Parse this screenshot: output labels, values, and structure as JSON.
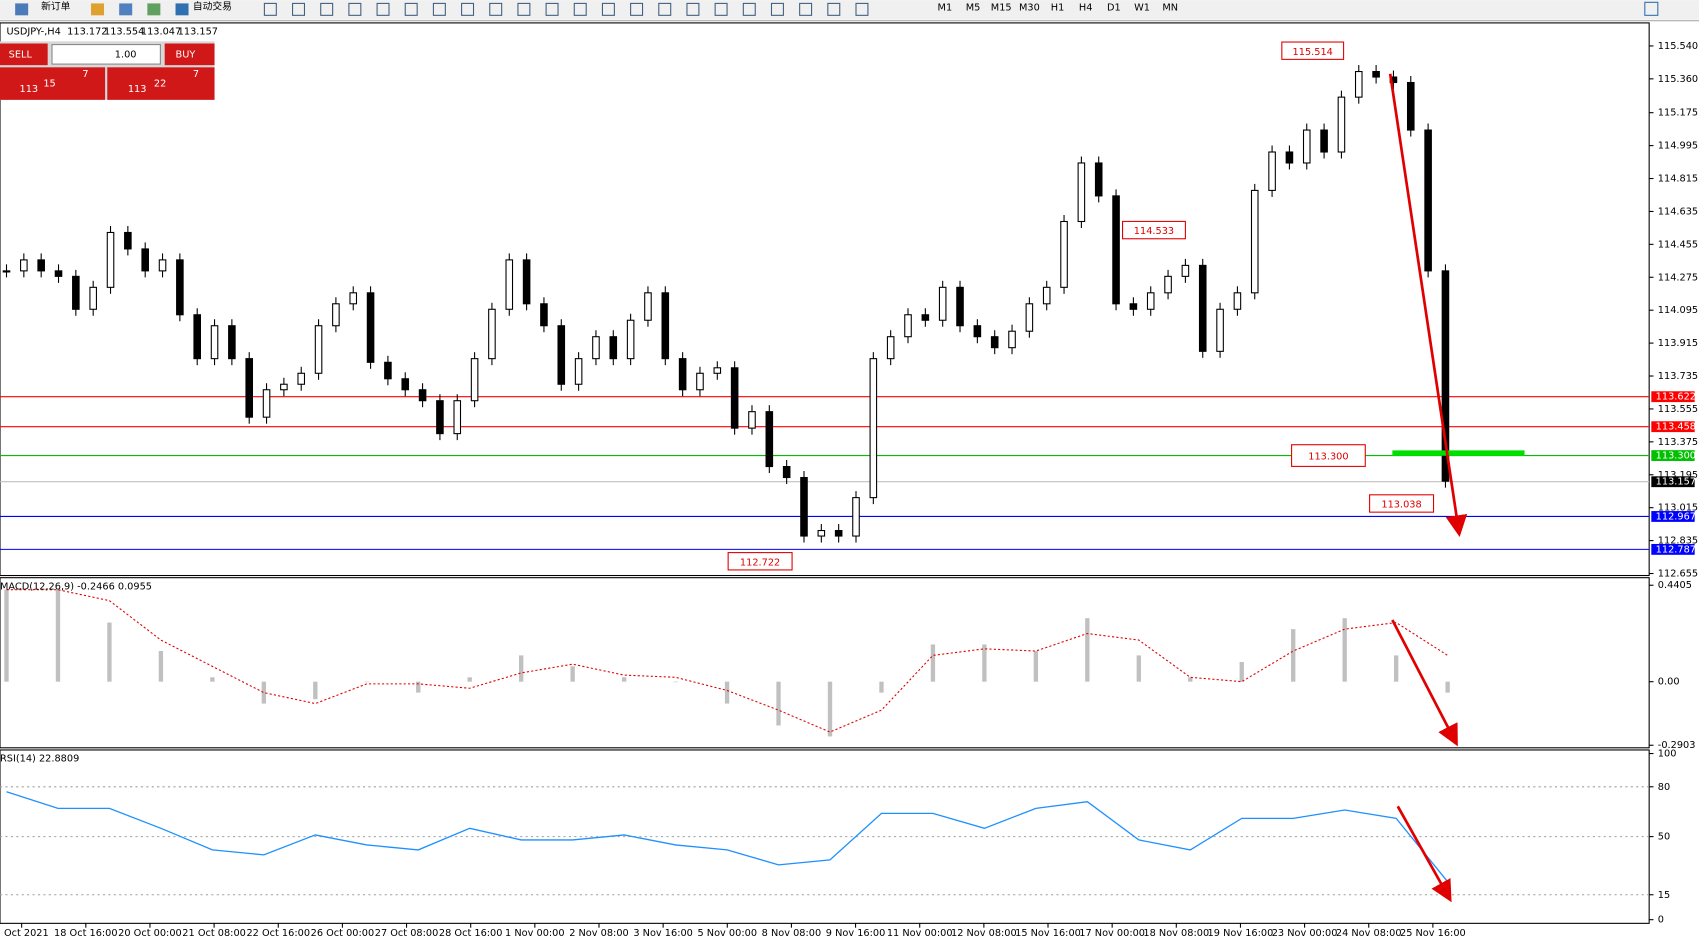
{
  "toolbar": {
    "new_order": "新订单",
    "auto_trading": "自动交易",
    "timeframes": [
      "M1",
      "M5",
      "M15",
      "M30",
      "H1",
      "H4",
      "D1",
      "W1",
      "MN"
    ]
  },
  "trade_panel": {
    "sell": "SELL",
    "lot": "1.00",
    "buy": "BUY",
    "sell_figure": "113",
    "sell_pips": "15",
    "sell_point": "7",
    "buy_figure": "113",
    "buy_pips": "22",
    "buy_point": "7"
  },
  "main": {
    "symbol": "USDJPY-,H4",
    "ohlc": [
      "113.172",
      "113.554",
      "113.047",
      "113.157"
    ],
    "ylim": [
      112.65,
      115.66
    ],
    "yticks": [
      {
        "value": 115.54,
        "label": "115.540"
      },
      {
        "value": 115.36,
        "label": "115.360"
      },
      {
        "value": 115.175,
        "label": "115.175"
      },
      {
        "value": 114.995,
        "label": "114.995"
      },
      {
        "value": 114.815,
        "label": "114.815"
      },
      {
        "value": 114.635,
        "label": "114.635"
      },
      {
        "value": 114.455,
        "label": "114.455"
      },
      {
        "value": 114.275,
        "label": "114.275"
      },
      {
        "value": 114.095,
        "label": "114.095"
      },
      {
        "value": 113.915,
        "label": "113.915"
      },
      {
        "value": 113.735,
        "label": "113.735"
      },
      {
        "value": 113.555,
        "label": "113.555"
      },
      {
        "value": 113.375,
        "label": "113.375"
      },
      {
        "value": 113.195,
        "label": "113.195"
      },
      {
        "value": 113.015,
        "label": "113.015"
      },
      {
        "value": 112.835,
        "label": "112.835"
      },
      {
        "value": 112.655,
        "label": "112.655"
      }
    ],
    "levels": [
      {
        "value": 113.622,
        "label": "113.622",
        "color": "#ff0000"
      },
      {
        "value": 113.458,
        "label": "113.458",
        "color": "#ff0000"
      },
      {
        "value": 113.3,
        "label": "113.300",
        "color": "#00c000"
      },
      {
        "value": 113.157,
        "label": "113.157",
        "color": "#000000"
      },
      {
        "value": 112.967,
        "label": "112.967",
        "color": "#0000ff"
      },
      {
        "value": 112.787,
        "label": "112.787",
        "color": "#0000ff"
      }
    ],
    "closes": [
      114.31,
      114.37,
      114.31,
      114.28,
      114.1,
      114.22,
      114.52,
      114.43,
      114.31,
      114.37,
      114.07,
      113.83,
      114.01,
      113.83,
      113.51,
      113.66,
      113.69,
      113.75,
      114.01,
      114.13,
      114.19,
      113.81,
      113.72,
      113.66,
      113.6,
      113.42,
      113.6,
      113.83,
      114.1,
      114.37,
      114.13,
      114.01,
      113.69,
      113.83,
      113.95,
      113.83,
      114.04,
      114.19,
      113.83,
      113.66,
      113.75,
      113.78,
      113.45,
      113.54,
      113.24,
      113.18,
      112.86,
      112.89,
      112.86,
      113.07,
      113.83,
      113.95,
      114.07,
      114.04,
      114.22,
      114.01,
      113.95,
      113.89,
      113.98,
      114.13,
      114.22,
      114.58,
      114.9,
      114.72,
      114.13,
      114.1,
      114.19,
      114.28,
      114.34,
      113.87,
      114.1,
      114.19,
      114.75,
      114.96,
      114.9,
      115.08,
      114.96,
      115.26,
      115.4,
      115.37,
      115.34,
      115.08,
      114.31,
      113.16
    ],
    "annotations": [
      {
        "value": 115.514,
        "label": "115.514"
      },
      {
        "value": 114.533,
        "label": "114.533"
      },
      {
        "value": 112.722,
        "label": "112.722"
      },
      {
        "value": 113.038,
        "label": "113.038"
      },
      {
        "value": 113.3,
        "label": "113.300"
      }
    ]
  },
  "macd": {
    "title": "MACD(12,26,9) -0.2466 0.0955",
    "ylim": [
      -0.302,
      0.47
    ],
    "yticks": [
      {
        "value": 0.4405,
        "label": "0.4405"
      },
      {
        "value": 0,
        "label": "0.00"
      },
      {
        "value": -0.2903,
        "label": "-0.2903"
      }
    ],
    "histogram": [
      0.42,
      0.42,
      0.27,
      0.14,
      0.02,
      -0.1,
      -0.08,
      0,
      -0.05,
      0.02,
      0.12,
      0.07,
      0.02,
      0,
      -0.1,
      -0.2,
      -0.25,
      -0.05,
      0.17,
      0.17,
      0.14,
      0.29,
      0.12,
      0.02,
      0.09,
      0.24,
      0.29,
      0.12,
      -0.05
    ],
    "signal": [
      0.42,
      0.42,
      0.37,
      0.19,
      0.07,
      -0.05,
      -0.1,
      -0.01,
      -0.01,
      -0.03,
      0.04,
      0.08,
      0.03,
      0.02,
      -0.04,
      -0.13,
      -0.23,
      -0.13,
      0.12,
      0.15,
      0.14,
      0.22,
      0.19,
      0.02,
      0,
      0.14,
      0.24,
      0.27,
      0.12
    ]
  },
  "rsi": {
    "title": "RSI(14) 22.8809",
    "ylim": [
      -2.2,
      101.5
    ],
    "yticks": [
      100,
      80,
      50,
      15,
      0
    ],
    "levels": [
      80,
      50,
      15
    ],
    "values": [
      77,
      67,
      67,
      55,
      42,
      39,
      51,
      45,
      42,
      55,
      48,
      48,
      51,
      45,
      42,
      33,
      36,
      64,
      64,
      55,
      67,
      71,
      48,
      42,
      61,
      61,
      66,
      61,
      22.88
    ]
  },
  "dates": [
    "5 Oct 2021",
    "18 Oct 16:00",
    "20 Oct 00:00",
    "21 Oct 08:00",
    "22 Oct 16:00",
    "26 Oct 00:00",
    "27 Oct 08:00",
    "28 Oct 16:00",
    "1 Nov 00:00",
    "2 Nov 08:00",
    "3 Nov 16:00",
    "5 Nov 00:00",
    "8 Nov 08:00",
    "9 Nov 16:00",
    "11 Nov 00:00",
    "12 Nov 08:00",
    "15 Nov 16:00",
    "17 Nov 00:00",
    "18 Nov 08:00",
    "19 Nov 16:00",
    "23 Nov 00:00",
    "24 Nov 08:00",
    "25 Nov 16:00"
  ]
}
